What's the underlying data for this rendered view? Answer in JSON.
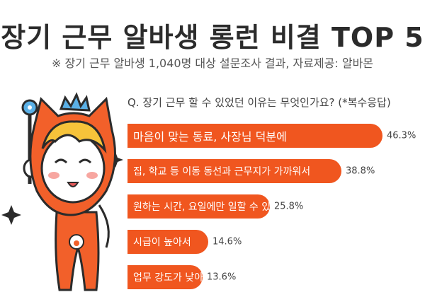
{
  "header": {
    "title": "장기 근무 알바생 롱런 비결 TOP 5",
    "subtitle": "※ 장기 근무 알바생 1,040명 대상 설문조사 결과,  자료제공: 알바몬"
  },
  "chart_data": {
    "type": "bar",
    "orientation": "horizontal",
    "title": "Q. 장기 근무 할 수 있었던 이유는 무엇인가요? (*복수응답)",
    "categories": [
      "마음이 맞는 동료, 사장님 덕분에",
      "집, 학교 등 이동 동선과 근무지가 가까워서",
      "원하는 시간, 요일에만 일할 수 있어서",
      "시급이 높아서",
      "업무 강도가 낮아서"
    ],
    "values": [
      46.3,
      38.8,
      25.8,
      14.6,
      13.6
    ],
    "value_labels": [
      "46.3%",
      "38.8%",
      "25.8%",
      "14.6%",
      "13.6%"
    ],
    "unit": "%",
    "bar_color": "#f0561f",
    "grid": false,
    "legend": "none"
  },
  "mascot": {
    "icon": "cat-mascot-icon",
    "colors": {
      "body": "#f2602a",
      "face": "#ffffff",
      "hair": "#f6c33a",
      "crown": "#5ab0e6"
    }
  }
}
